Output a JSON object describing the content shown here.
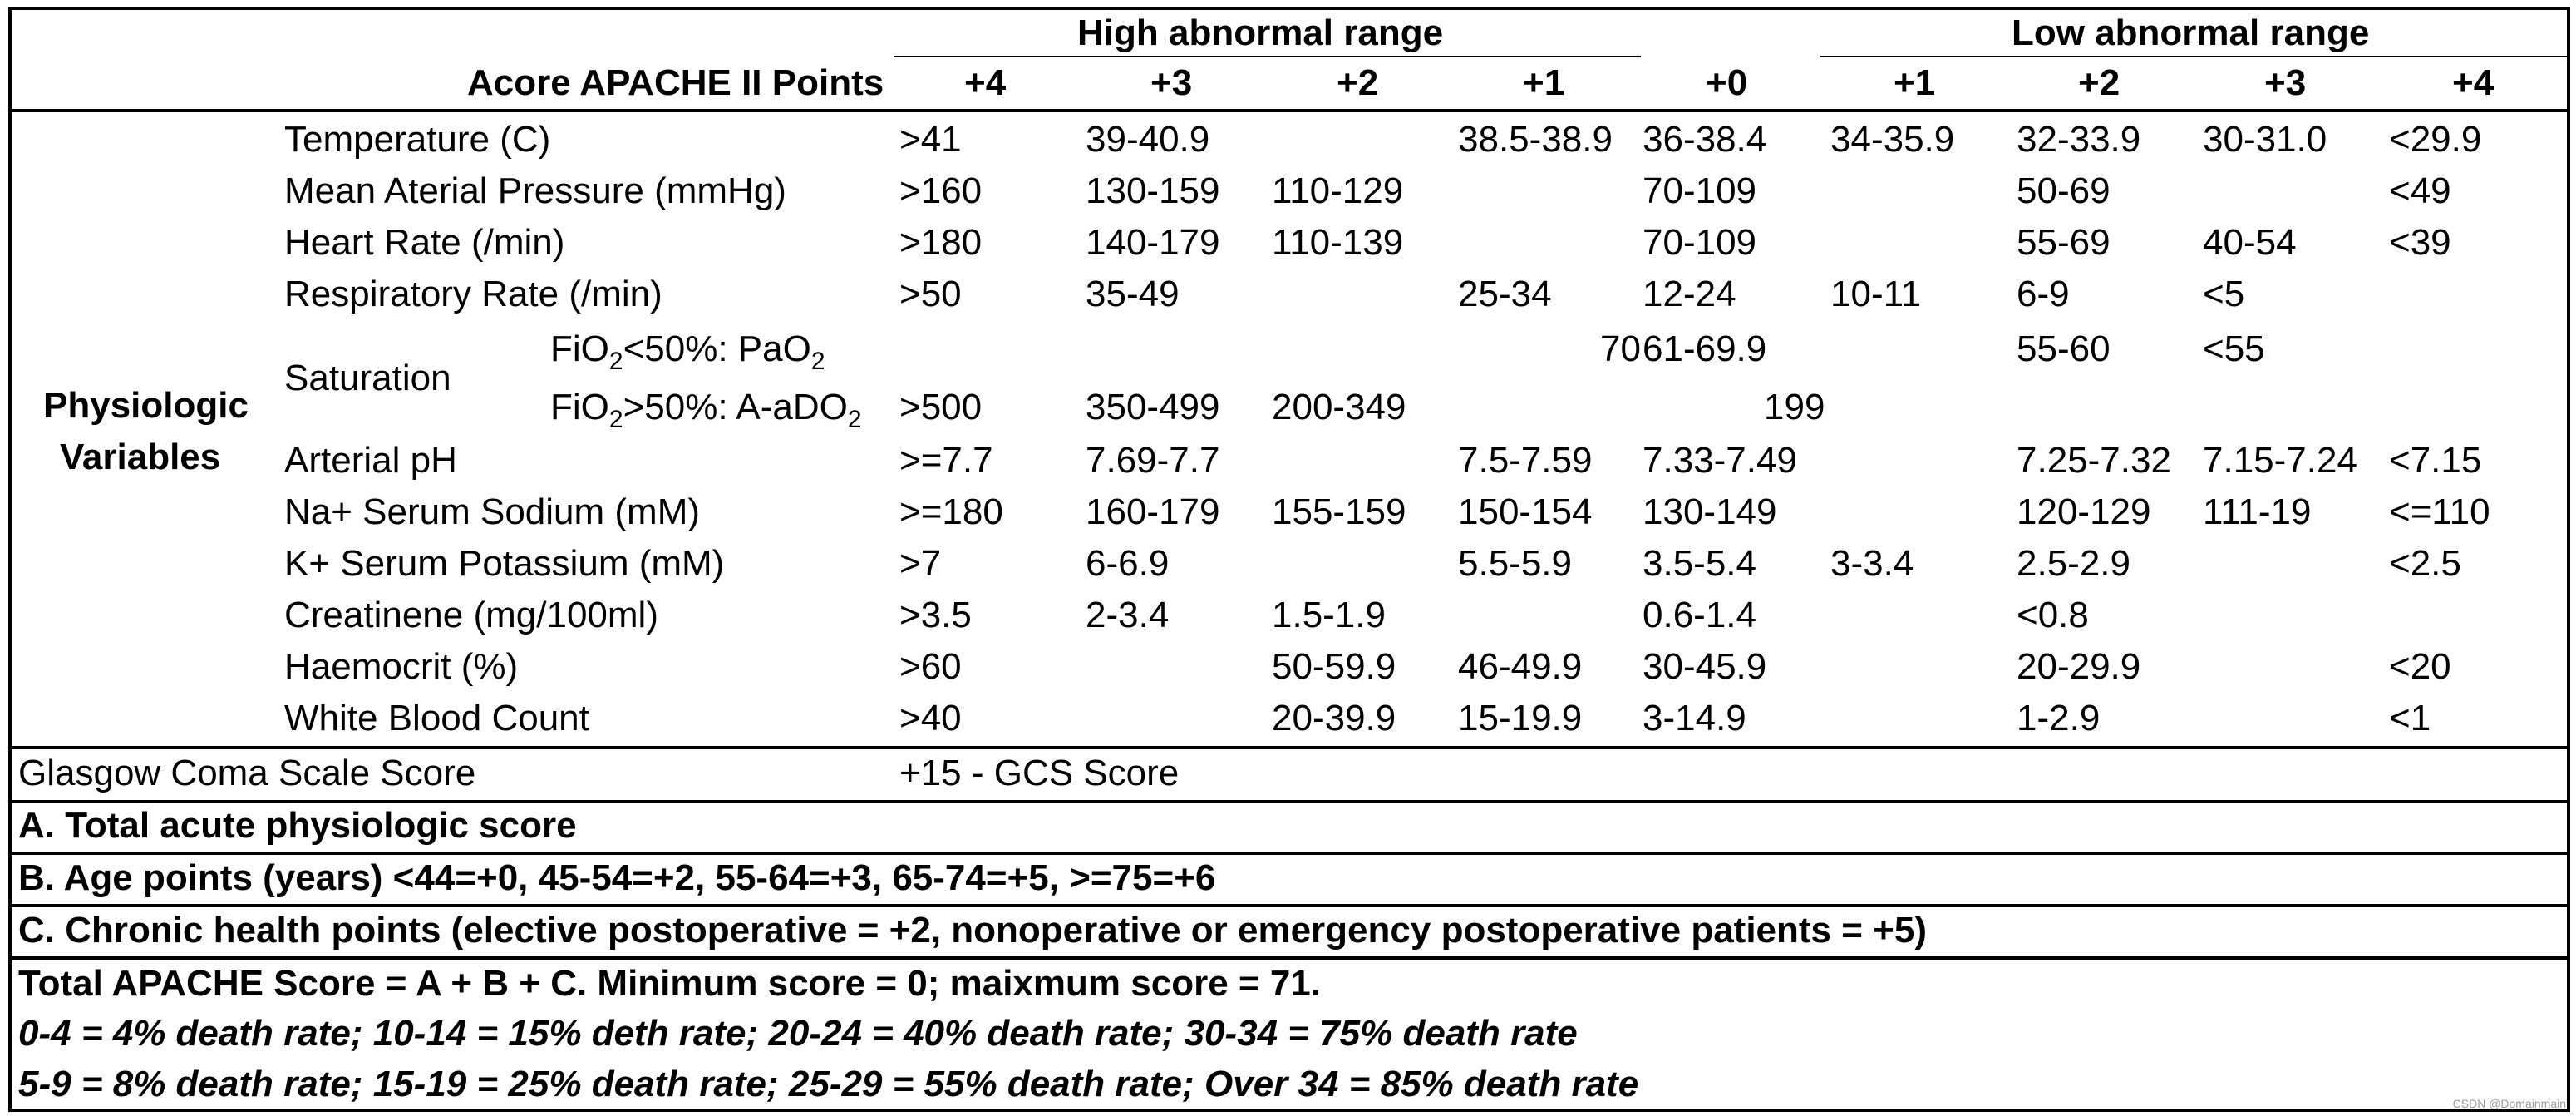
{
  "header": {
    "high_range": "High abnormal range",
    "low_range": "Low abnormal range",
    "corner": "Acore APACHE II Points",
    "points": [
      "+4",
      "+3",
      "+2",
      "+1",
      "+0",
      "+1",
      "+2",
      "+3",
      "+4"
    ]
  },
  "group_label_line1": "Physiologic",
  "group_label_line2": "Variables",
  "saturation_label": "Saturation",
  "rows": [
    {
      "label": "Temperature (C)",
      "cells": [
        ">41",
        "39-40.9",
        "",
        "38.5-38.9",
        "36-38.4",
        "34-35.9",
        "32-33.9",
        "30-31.0",
        "<29.9"
      ]
    },
    {
      "label": "Mean Aterial Pressure (mmHg)",
      "cells": [
        ">160",
        "130-159",
        "110-129",
        "",
        "70-109",
        "",
        "50-69",
        "",
        "<49"
      ]
    },
    {
      "label": "Heart Rate (/min)",
      "cells": [
        ">180",
        "140-179",
        "110-139",
        "",
        "70-109",
        "",
        "55-69",
        "40-54",
        "<39"
      ]
    },
    {
      "label": "Respiratory Rate (/min)",
      "cells": [
        ">50",
        "35-49",
        "",
        "25-34",
        "12-24",
        "10-11",
        "6-9",
        "<5",
        ""
      ]
    },
    {
      "sub": {
        "a": "FiO",
        "b": "2",
        "c": "<50%: PaO",
        "d": "2"
      },
      "cells": [
        "",
        "",
        "",
        "70",
        "61-69.9",
        "",
        "55-60",
        "<55",
        ""
      ]
    },
    {
      "sub": {
        "a": "FiO",
        "b": "2",
        "c": ">50%: A-aDO",
        "d": "2"
      },
      "cells": [
        ">500",
        "350-499",
        "200-349",
        "",
        "199",
        "",
        "",
        "",
        ""
      ]
    },
    {
      "label": "Arterial pH",
      "cells": [
        ">=7.7",
        "7.69-7.7",
        "",
        "7.5-7.59",
        "7.33-7.49",
        "",
        "7.25-7.32",
        "7.15-7.24",
        "<7.15"
      ]
    },
    {
      "label": "Na+ Serum Sodium (mM)",
      "cells": [
        ">=180",
        "160-179",
        "155-159",
        "150-154",
        "130-149",
        "",
        "120-129",
        "111-19",
        "<=110"
      ]
    },
    {
      "label": "K+ Serum Potassium (mM)",
      "cells": [
        ">7",
        "6-6.9",
        "",
        "5.5-5.9",
        "3.5-5.4",
        "3-3.4",
        "2.5-2.9",
        "",
        "<2.5"
      ]
    },
    {
      "label": "Creatinene (mg/100ml)",
      "cells": [
        ">3.5",
        "2-3.4",
        "1.5-1.9",
        "",
        "0.6-1.4",
        "",
        "<0.8",
        "",
        ""
      ]
    },
    {
      "label": "Haemocrit (%)",
      "cells": [
        ">60",
        "",
        "50-59.9",
        "46-49.9",
        "30-45.9",
        "",
        "20-29.9",
        "",
        "<20"
      ]
    },
    {
      "label": "White Blood Count",
      "cells": [
        ">40",
        "",
        "20-39.9",
        "15-19.9",
        "3-14.9",
        "",
        "1-2.9",
        "",
        "<1"
      ]
    }
  ],
  "gcs": {
    "label": "Glasgow Coma Scale Score",
    "value": "+15 - GCS Score"
  },
  "sections": {
    "a": "A. Total acute physiologic score",
    "b": "B. Age points (years) <44=+0, 45-54=+2, 55-64=+3, 65-74=+5, >=75=+6",
    "c": "C. Chronic health points (elective postoperative = +2, nonoperative or emergency postoperative patients = +5)"
  },
  "summary": {
    "total": "Total APACHE Score = A + B + C. Minimum score = 0; maixmum score = 71.",
    "rates1": "0-4 = 4% death rate; 10-14 = 15% deth rate; 20-24 = 40% death rate; 30-34 = 75% death rate",
    "rates2": "5-9 = 8% death rate; 15-19 = 25% death rate; 25-29 = 55% death rate; Over 34 = 85% death rate"
  },
  "watermark": "CSDN @Domainmain"
}
